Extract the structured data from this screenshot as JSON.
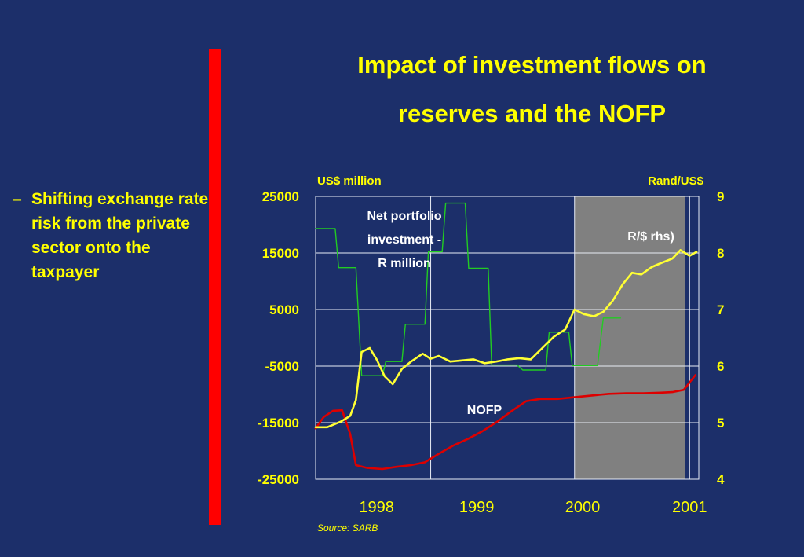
{
  "slide": {
    "title": "Impact of investment flows on reserves and the NOFP",
    "bullet_marker": "–",
    "bullet": "Shifting exchange rate risk from the private sector onto the taxpayer"
  },
  "colors": {
    "background": "#1c2f6a",
    "accent_bar": "#ff0000",
    "text": "#ffff00",
    "nofp": "#dd0000",
    "portfolio": "#22cc22",
    "rand": "#ffff33",
    "shade": "#808080"
  },
  "chart_data": {
    "type": "line",
    "left_axis": {
      "label": "US$ million",
      "ylim": [
        -25000,
        25000
      ],
      "ticks": [
        "25000",
        "15000",
        "5000",
        "-5000",
        "-15000",
        "-25000"
      ]
    },
    "right_axis": {
      "label": "Rand/US$",
      "ylim": [
        4,
        9
      ],
      "ticks": [
        "9",
        "8",
        "7",
        "6",
        "5",
        "4"
      ]
    },
    "x_axis": {
      "ticks": [
        "1998",
        "1999",
        "2000",
        "2001"
      ],
      "start": 1997.75,
      "end": 2001.08
    },
    "grid": true,
    "shaded_region": [
      2000.0,
      2000.96
    ],
    "source": "Source: SARB",
    "annotations": {
      "portfolio": "Net portfolio investment - R million",
      "nofp": "NOFP",
      "rand": "R/$ rhs)"
    },
    "series": [
      {
        "name": "Net portfolio investment - R million",
        "axis": "left",
        "step": true,
        "points": [
          [
            1997.75,
            19300
          ],
          [
            1997.92,
            19300
          ],
          [
            1997.95,
            12400
          ],
          [
            1998.1,
            12400
          ],
          [
            1998.15,
            -6700
          ],
          [
            1998.33,
            -6700
          ],
          [
            1998.36,
            -4200
          ],
          [
            1998.5,
            -4200
          ],
          [
            1998.53,
            2400
          ],
          [
            1998.7,
            2400
          ],
          [
            1998.73,
            15200
          ],
          [
            1998.85,
            15200
          ],
          [
            1998.88,
            23800
          ],
          [
            1999.05,
            23800
          ],
          [
            1999.08,
            12300
          ],
          [
            1999.25,
            12300
          ],
          [
            1999.28,
            -4800
          ],
          [
            1999.5,
            -4800
          ],
          [
            1999.55,
            -5700
          ],
          [
            1999.75,
            -5700
          ],
          [
            1999.78,
            1000
          ],
          [
            1999.95,
            1000
          ],
          [
            1999.98,
            -4900
          ],
          [
            2000.2,
            -4900
          ],
          [
            2000.25,
            3500
          ],
          [
            2000.4,
            3500
          ]
        ]
      },
      {
        "name": "NOFP",
        "axis": "left",
        "step": false,
        "points": [
          [
            1997.75,
            -16000
          ],
          [
            1997.82,
            -14000
          ],
          [
            1997.9,
            -12900
          ],
          [
            1997.98,
            -12800
          ],
          [
            1998.05,
            -17000
          ],
          [
            1998.1,
            -22500
          ],
          [
            1998.2,
            -23000
          ],
          [
            1998.33,
            -23200
          ],
          [
            1998.45,
            -22800
          ],
          [
            1998.58,
            -22500
          ],
          [
            1998.7,
            -22000
          ],
          [
            1998.82,
            -20500
          ],
          [
            1998.95,
            -19000
          ],
          [
            1999.08,
            -17800
          ],
          [
            1999.2,
            -16500
          ],
          [
            1999.33,
            -14800
          ],
          [
            1999.45,
            -13000
          ],
          [
            1999.58,
            -11200
          ],
          [
            1999.7,
            -10800
          ],
          [
            1999.85,
            -10800
          ],
          [
            2000.0,
            -10500
          ],
          [
            2000.15,
            -10200
          ],
          [
            2000.3,
            -9900
          ],
          [
            2000.45,
            -9800
          ],
          [
            2000.6,
            -9800
          ],
          [
            2000.75,
            -9700
          ],
          [
            2000.85,
            -9600
          ],
          [
            2000.95,
            -9200
          ],
          [
            2001.05,
            -6600
          ]
        ]
      },
      {
        "name": "R/$ rhs)",
        "axis": "right",
        "step": false,
        "points": [
          [
            1997.75,
            4.92
          ],
          [
            1997.85,
            4.92
          ],
          [
            1997.97,
            5.02
          ],
          [
            1998.05,
            5.12
          ],
          [
            1998.1,
            5.4
          ],
          [
            1998.15,
            6.25
          ],
          [
            1998.22,
            6.32
          ],
          [
            1998.28,
            6.12
          ],
          [
            1998.35,
            5.82
          ],
          [
            1998.42,
            5.68
          ],
          [
            1998.5,
            5.95
          ],
          [
            1998.58,
            6.08
          ],
          [
            1998.68,
            6.22
          ],
          [
            1998.75,
            6.13
          ],
          [
            1998.82,
            6.18
          ],
          [
            1998.92,
            6.08
          ],
          [
            1999.02,
            6.1
          ],
          [
            1999.12,
            6.12
          ],
          [
            1999.22,
            6.05
          ],
          [
            1999.32,
            6.08
          ],
          [
            1999.42,
            6.12
          ],
          [
            1999.52,
            6.14
          ],
          [
            1999.62,
            6.12
          ],
          [
            1999.72,
            6.32
          ],
          [
            1999.82,
            6.52
          ],
          [
            1999.92,
            6.65
          ],
          [
            2000.0,
            7.0
          ],
          [
            2000.08,
            6.92
          ],
          [
            2000.17,
            6.88
          ],
          [
            2000.25,
            6.96
          ],
          [
            2000.33,
            7.15
          ],
          [
            2000.42,
            7.45
          ],
          [
            2000.5,
            7.65
          ],
          [
            2000.58,
            7.62
          ],
          [
            2000.67,
            7.75
          ],
          [
            2000.75,
            7.82
          ],
          [
            2000.85,
            7.9
          ],
          [
            2000.92,
            8.05
          ],
          [
            2001.0,
            7.95
          ],
          [
            2001.06,
            8.02
          ]
        ]
      }
    ]
  }
}
